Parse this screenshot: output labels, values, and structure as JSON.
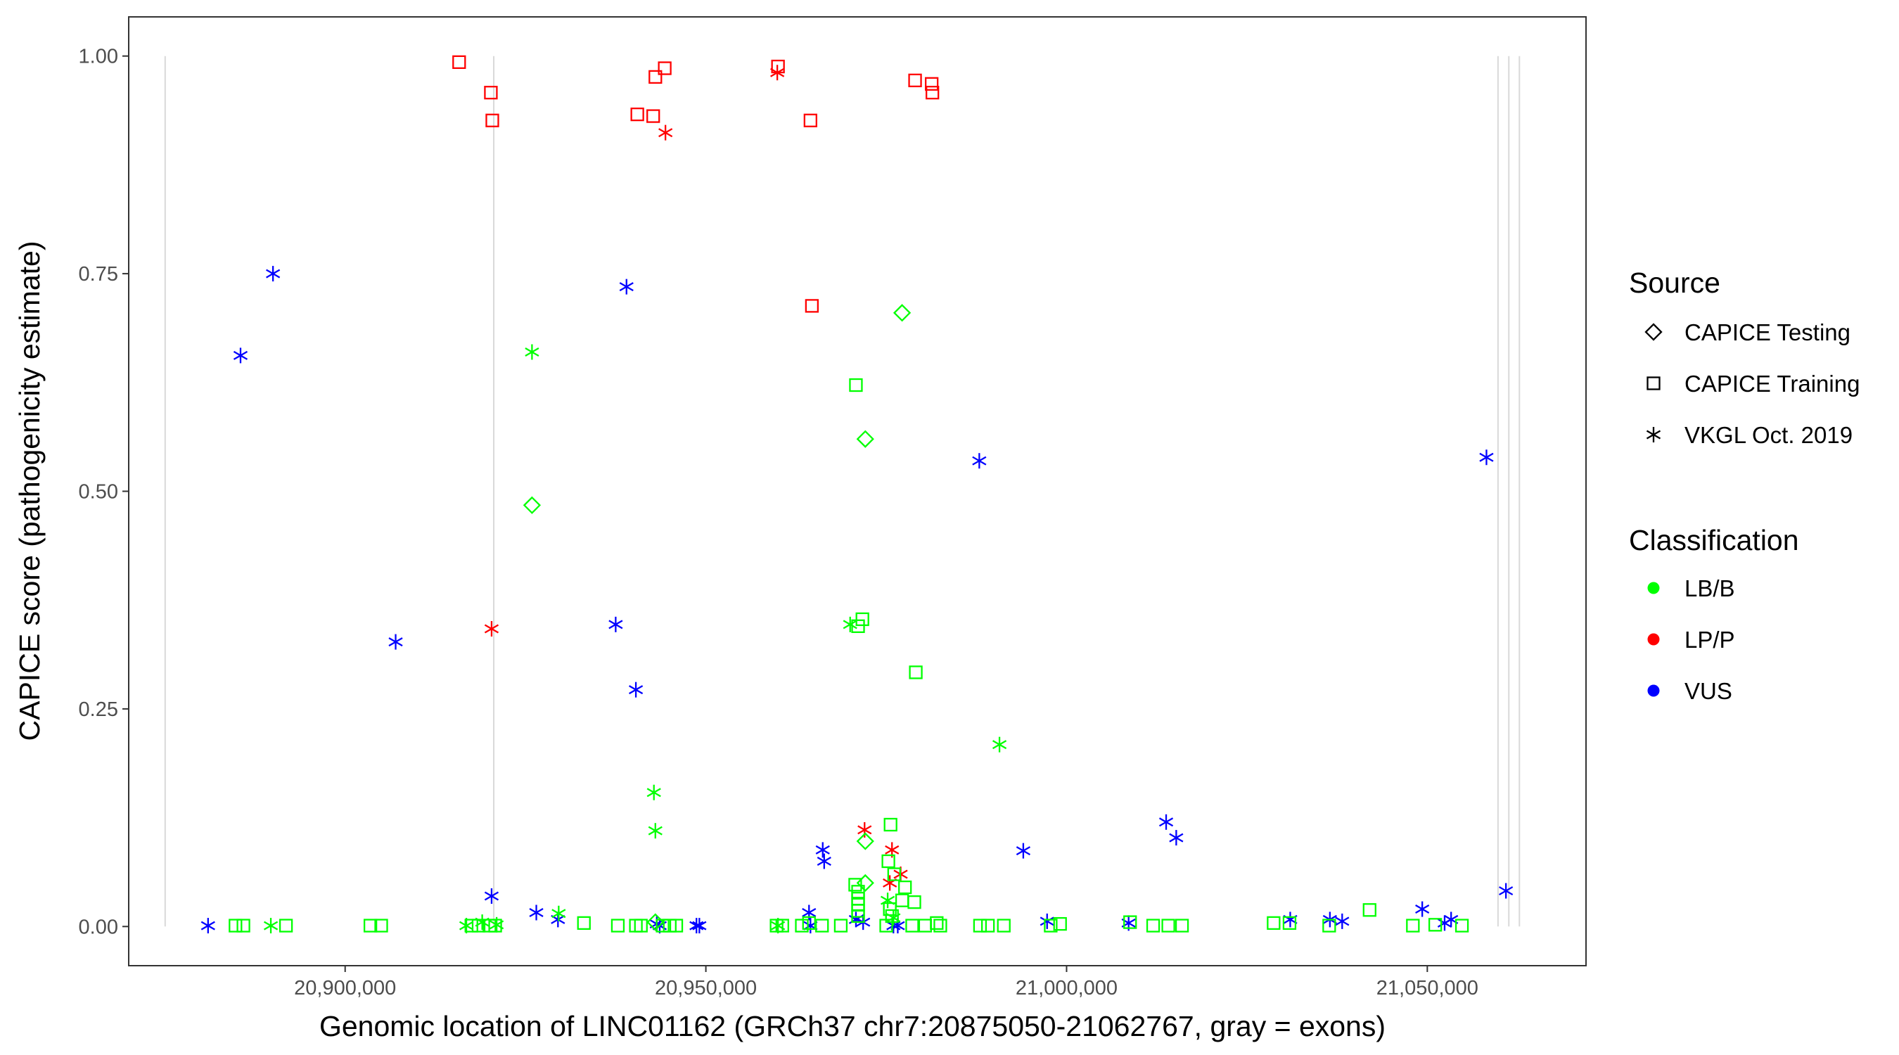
{
  "chart_data": {
    "type": "scatter",
    "title": "",
    "xlabel": "Genomic location of LINC01162 (GRCh37 chr7:20875050-21062767, gray = exons)",
    "ylabel": "CAPICE score (pathogenicity estimate)",
    "xlim": [
      20870000,
      21072000
    ],
    "ylim": [
      -0.045,
      1.045
    ],
    "x_ticks": [
      20900000,
      20950000,
      21000000,
      21050000
    ],
    "x_tick_labels": [
      "20,900,000",
      "20,950,000",
      "21,000,000",
      "21,050,000"
    ],
    "y_ticks": [
      0,
      0.25,
      0.5,
      0.75,
      1.0
    ],
    "y_tick_labels": [
      "0.00",
      "0.25",
      "0.50",
      "0.75",
      "1.00"
    ],
    "grid": false,
    "exon_lines": [
      20875050,
      20920600,
      21059800,
      21061300,
      21062767
    ],
    "exon_color": "#d9d9d9",
    "legend": {
      "placement": "right",
      "source_title": "Source",
      "source_items": [
        {
          "label": "CAPICE Testing",
          "shape": "diamond"
        },
        {
          "label": "CAPICE Training",
          "shape": "square"
        },
        {
          "label": "VKGL Oct. 2019",
          "shape": "asterisk"
        }
      ],
      "class_title": "Classification",
      "class_items": [
        {
          "label": "LB/B",
          "color": "#00ff00"
        },
        {
          "label": "LP/P",
          "color": "#ff0000"
        },
        {
          "label": "VUS",
          "color": "#0000ff"
        }
      ]
    },
    "series": [
      {
        "source": "CAPICE Training",
        "classification": "LP/P",
        "shape": "square",
        "color": "#ff0000",
        "points": [
          [
            20915800,
            0.993
          ],
          [
            20920200,
            0.958
          ],
          [
            20920400,
            0.926
          ],
          [
            20940500,
            0.933
          ],
          [
            20942700,
            0.931
          ],
          [
            20943000,
            0.976
          ],
          [
            20944300,
            0.986
          ],
          [
            20960000,
            0.988
          ],
          [
            20964500,
            0.926
          ],
          [
            20964700,
            0.713
          ],
          [
            20979000,
            0.972
          ],
          [
            20981300,
            0.968
          ],
          [
            20981400,
            0.958
          ]
        ]
      },
      {
        "source": "VKGL Oct. 2019",
        "classification": "LP/P",
        "shape": "asterisk",
        "color": "#ff0000",
        "points": [
          [
            20920300,
            0.342
          ],
          [
            20944400,
            0.912
          ],
          [
            20959900,
            0.981
          ],
          [
            20972000,
            0.111
          ],
          [
            20975800,
            0.088
          ],
          [
            20975500,
            0.05
          ],
          [
            20977000,
            0.06
          ]
        ]
      },
      {
        "source": "VKGL Oct. 2019",
        "classification": "VUS",
        "shape": "asterisk",
        "color": "#0000ff",
        "points": [
          [
            20881000,
            0.001
          ],
          [
            20885500,
            0.656
          ],
          [
            20890000,
            0.75
          ],
          [
            20907000,
            0.327
          ],
          [
            20920300,
            0.035
          ],
          [
            20926500,
            0.016
          ],
          [
            20929500,
            0.008
          ],
          [
            20937500,
            0.347
          ],
          [
            20939000,
            0.735
          ],
          [
            20940300,
            0.272
          ],
          [
            20943200,
            0.003
          ],
          [
            20943600,
            0.001
          ],
          [
            20948700,
            0.001
          ],
          [
            20949100,
            0.001
          ],
          [
            20964300,
            0.016
          ],
          [
            20964500,
            0.001
          ],
          [
            20966200,
            0.088
          ],
          [
            20966400,
            0.075
          ],
          [
            20970800,
            0.008
          ],
          [
            20971800,
            0.005
          ],
          [
            20976000,
            0.001
          ],
          [
            20976600,
            0.001
          ],
          [
            20987900,
            0.535
          ],
          [
            20994000,
            0.087
          ],
          [
            20997300,
            0.006
          ],
          [
            21008600,
            0.004
          ],
          [
            21013800,
            0.12
          ],
          [
            21015200,
            0.102
          ],
          [
            21031000,
            0.008
          ],
          [
            21036500,
            0.008
          ],
          [
            21038200,
            0.006
          ],
          [
            21049300,
            0.02
          ],
          [
            21052400,
            0.004
          ],
          [
            21053300,
            0.008
          ],
          [
            21058200,
            0.539
          ],
          [
            21060900,
            0.041
          ]
        ]
      },
      {
        "source": "VKGL Oct. 2019",
        "classification": "LB/B",
        "shape": "asterisk",
        "color": "#00ff00",
        "points": [
          [
            20889700,
            0.001
          ],
          [
            20916800,
            0.001
          ],
          [
            20919000,
            0.005
          ],
          [
            20921000,
            0.002
          ],
          [
            20925900,
            0.66
          ],
          [
            20929600,
            0.015
          ],
          [
            20942800,
            0.154
          ],
          [
            20943000,
            0.11
          ],
          [
            20960000,
            0.001
          ],
          [
            20970000,
            0.347
          ],
          [
            20975200,
            0.03
          ],
          [
            20976000,
            0.01
          ],
          [
            20990700,
            0.209
          ]
        ]
      },
      {
        "source": "CAPICE Testing",
        "classification": "LB/B",
        "shape": "diamond",
        "color": "#00ff00",
        "points": [
          [
            20925900,
            0.484
          ],
          [
            20943000,
            0.005
          ],
          [
            20972100,
            0.56
          ],
          [
            20972100,
            0.098
          ],
          [
            20972100,
            0.05
          ],
          [
            20977200,
            0.705
          ]
        ]
      },
      {
        "source": "CAPICE Training",
        "classification": "LB/B",
        "shape": "square",
        "color": "#00ff00",
        "points": [
          [
            20884800,
            0.001
          ],
          [
            20885900,
            0.001
          ],
          [
            20891800,
            0.001
          ],
          [
            20903500,
            0.001
          ],
          [
            20905000,
            0.001
          ],
          [
            20917500,
            0.001
          ],
          [
            20918500,
            0.001
          ],
          [
            20920000,
            0.001
          ],
          [
            20920800,
            0.001
          ],
          [
            20933100,
            0.004
          ],
          [
            20937800,
            0.001
          ],
          [
            20940300,
            0.001
          ],
          [
            20941000,
            0.001
          ],
          [
            20944000,
            0.001
          ],
          [
            20945000,
            0.001
          ],
          [
            20945900,
            0.001
          ],
          [
            20959800,
            0.001
          ],
          [
            20960600,
            0.001
          ],
          [
            20963300,
            0.001
          ],
          [
            20964300,
            0.004
          ],
          [
            20966100,
            0.001
          ],
          [
            20968700,
            0.001
          ],
          [
            20970800,
            0.622
          ],
          [
            20971100,
            0.345
          ],
          [
            20971700,
            0.353
          ],
          [
            20970700,
            0.048
          ],
          [
            20971100,
            0.04
          ],
          [
            20971100,
            0.032
          ],
          [
            20971100,
            0.025
          ],
          [
            20971100,
            0.018
          ],
          [
            20971100,
            0.012
          ],
          [
            20975600,
            0.117
          ],
          [
            20975300,
            0.075
          ],
          [
            20976100,
            0.06
          ],
          [
            20977600,
            0.045
          ],
          [
            20977200,
            0.03
          ],
          [
            20978900,
            0.028
          ],
          [
            20975500,
            0.02
          ],
          [
            20975800,
            0.012
          ],
          [
            20979100,
            0.292
          ],
          [
            20975000,
            0.001
          ],
          [
            20978600,
            0.001
          ],
          [
            20980400,
            0.001
          ],
          [
            20982000,
            0.004
          ],
          [
            20982500,
            0.001
          ],
          [
            20988000,
            0.001
          ],
          [
            20989100,
            0.001
          ],
          [
            20991300,
            0.001
          ],
          [
            20997800,
            0.001
          ],
          [
            20999100,
            0.003
          ],
          [
            21008800,
            0.005
          ],
          [
            21012000,
            0.001
          ],
          [
            21014100,
            0.001
          ],
          [
            21016000,
            0.001
          ],
          [
            21028700,
            0.004
          ],
          [
            21030900,
            0.004
          ],
          [
            21036400,
            0.001
          ],
          [
            21042000,
            0.019
          ],
          [
            21048000,
            0.001
          ],
          [
            21051100,
            0.002
          ],
          [
            21054800,
            0.001
          ]
        ]
      }
    ]
  }
}
